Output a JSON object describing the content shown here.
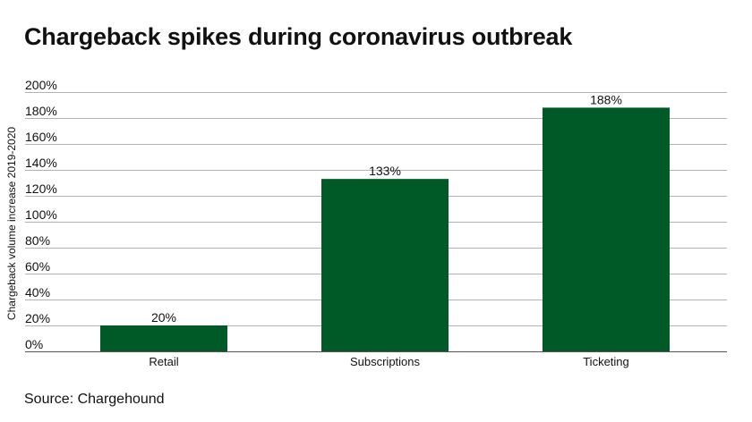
{
  "title": "Chargeback spikes during coronavirus outbreak",
  "source": "Source: Chargehound",
  "colors": {
    "bar": "#005a27",
    "grid": "#999999",
    "text": "#111111"
  },
  "chart_data": {
    "type": "bar",
    "title": "Chargeback spikes during coronavirus outbreak",
    "xlabel": "",
    "ylabel": "Chargeback volume increase 2019-2020",
    "categories": [
      "Retail",
      "Subscriptions",
      "Ticketing"
    ],
    "values": [
      20,
      133,
      188
    ],
    "value_labels": [
      "20%",
      "133%",
      "188%"
    ],
    "ylim": [
      0,
      200
    ],
    "yticks": [
      0,
      20,
      40,
      60,
      80,
      100,
      120,
      140,
      160,
      180,
      200
    ],
    "ytick_labels": [
      "0%",
      "20%",
      "40%",
      "60%",
      "80%",
      "100%",
      "120%",
      "140%",
      "160%",
      "180%",
      "200%"
    ],
    "grid": true,
    "legend": "none"
  }
}
